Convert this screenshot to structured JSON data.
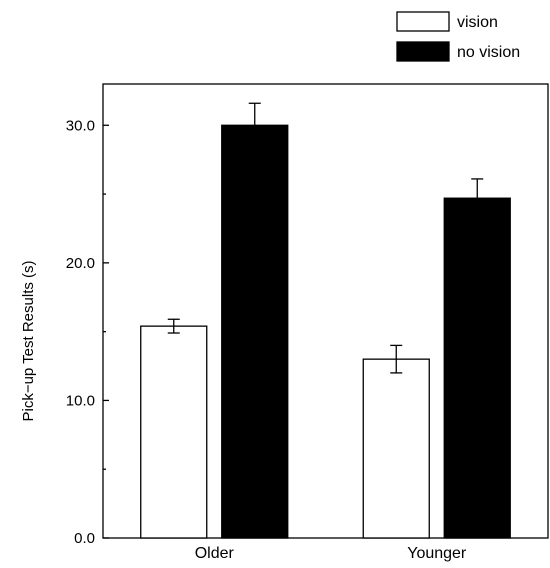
{
  "chart_data": {
    "type": "bar",
    "categories": [
      "Older",
      "Younger"
    ],
    "series": [
      {
        "name": "vision",
        "values": [
          15.4,
          13.0
        ],
        "errors": [
          0.5,
          1.0
        ],
        "fill": "#ffffff",
        "stroke": "#000000"
      },
      {
        "name": "no vision",
        "values": [
          30.0,
          24.7
        ],
        "errors": [
          1.6,
          1.4
        ],
        "fill": "#000000",
        "stroke": "#000000"
      }
    ],
    "ylabel": "Pick−up Test Results (s)",
    "xlabel": "",
    "ylim": [
      0,
      33
    ],
    "yticks": [
      {
        "value": 0,
        "label": "0.0"
      },
      {
        "value": 10,
        "label": "10.0"
      },
      {
        "value": 20,
        "label": "20.0"
      },
      {
        "value": 30,
        "label": "30.0"
      }
    ],
    "grid": false,
    "legend_position": "top-right, above plot"
  }
}
